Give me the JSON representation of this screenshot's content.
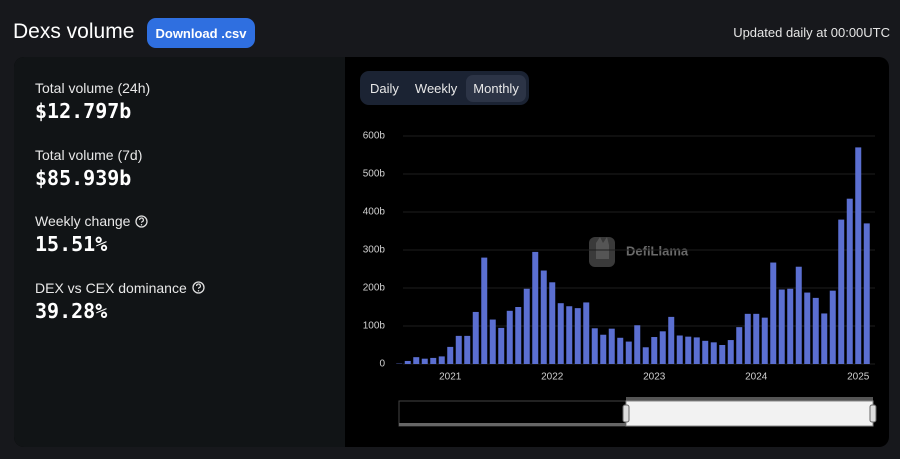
{
  "header": {
    "title": "Dexs volume",
    "download": "Download .csv",
    "updated": "Updated daily at 00:00UTC"
  },
  "stats": [
    {
      "label": "Total volume (24h)",
      "value": "$12.797b"
    },
    {
      "label": "Total volume (7d)",
      "value": "$85.939b"
    },
    {
      "label": "Weekly change",
      "value": "15.51%"
    },
    {
      "label": "DEX vs CEX dominance",
      "value": "39.28%"
    }
  ],
  "toggle": [
    "Daily",
    "Weekly",
    "Monthly"
  ],
  "watermark": "DefiLlama",
  "chart_data": {
    "type": "bar",
    "color": "#5b6fd1",
    "grid": true,
    "categories": [
      null,
      null,
      null,
      null,
      null,
      null,
      "2021",
      null,
      null,
      null,
      null,
      null,
      null,
      null,
      null,
      null,
      null,
      null,
      "2022",
      null,
      null,
      null,
      null,
      null,
      null,
      null,
      null,
      null,
      null,
      null,
      "2023",
      null,
      null,
      null,
      null,
      null,
      null,
      null,
      null,
      null,
      null,
      null,
      "2024",
      null,
      null,
      null,
      null,
      null,
      null,
      null,
      null,
      null,
      null,
      null,
      "2025",
      null
    ],
    "values": [
      1,
      8,
      18,
      14,
      16,
      20,
      45,
      74,
      74,
      137,
      280,
      117,
      95,
      140,
      150,
      198,
      295,
      246,
      215,
      160,
      152,
      147,
      162,
      94,
      77,
      93,
      69,
      59,
      102,
      44,
      71,
      86,
      124,
      75,
      72,
      70,
      61,
      57,
      50,
      63,
      97,
      132,
      132,
      122,
      267,
      196,
      198,
      256,
      188,
      174,
      133,
      193,
      380,
      435,
      570,
      370
    ],
    "ylim": [
      0,
      600
    ],
    "yticks": [
      0,
      {
        "value": 100,
        "label": "100b"
      },
      {
        "value": 200,
        "label": "200b"
      },
      {
        "value": 300,
        "label": "300b"
      },
      {
        "value": 400,
        "label": "400b"
      },
      {
        "value": 500,
        "label": "500b"
      },
      {
        "value": 600,
        "label": "600b"
      }
    ]
  }
}
